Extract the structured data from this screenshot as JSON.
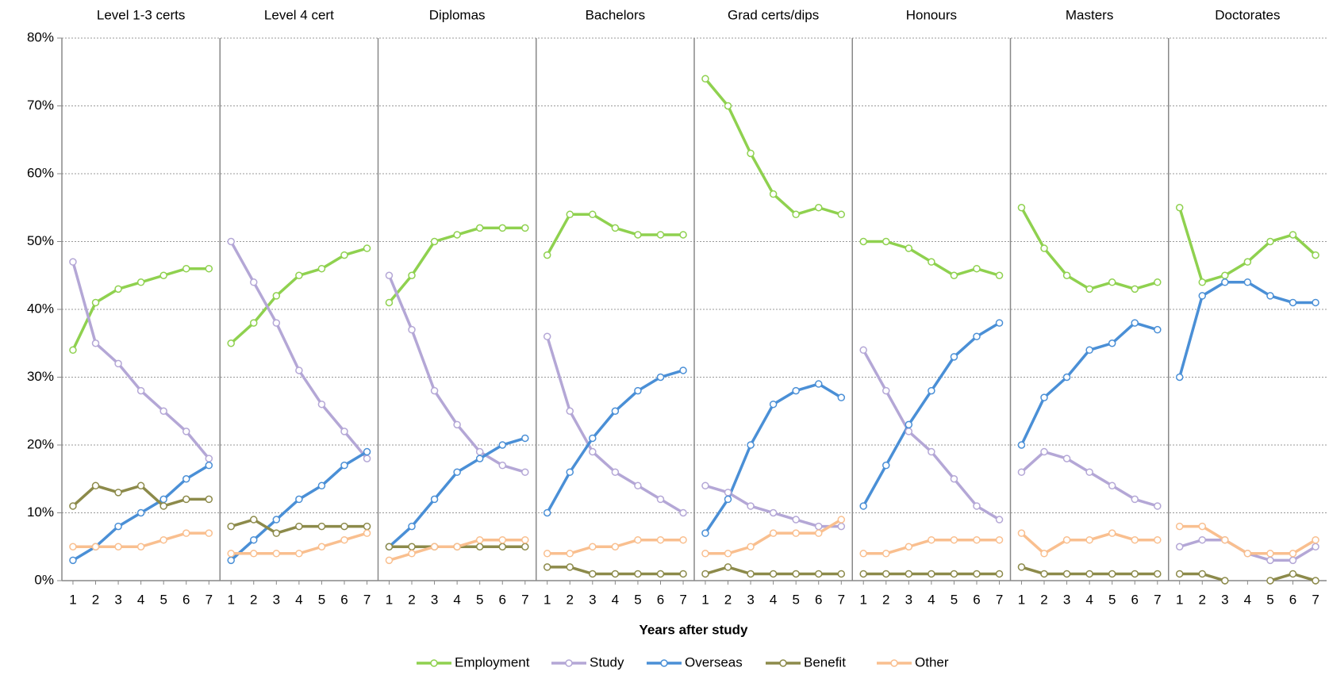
{
  "chart_data": {
    "type": "line",
    "xlabel": "Years after study",
    "panels": [
      "Level 1-3 certs",
      "Level 4 cert",
      "Diplomas",
      "Bachelors",
      "Grad certs/dips",
      "Honours",
      "Masters",
      "Doctorates"
    ],
    "x": [
      1,
      2,
      3,
      4,
      5,
      6,
      7
    ],
    "ylim": [
      0,
      80
    ],
    "yticks": [
      {
        "value": 0,
        "label": "0%"
      },
      {
        "value": 10,
        "label": "10%"
      },
      {
        "value": 20,
        "label": "20%"
      },
      {
        "value": 30,
        "label": "30%"
      },
      {
        "value": 40,
        "label": "40%"
      },
      {
        "value": 50,
        "label": "50%"
      },
      {
        "value": 60,
        "label": "60%"
      },
      {
        "value": 70,
        "label": "70%"
      },
      {
        "value": 80,
        "label": "80%"
      }
    ],
    "grid": true,
    "legend": "bottom",
    "series": [
      {
        "name": "Employment",
        "color": "#8fd14f",
        "values": [
          [
            34,
            41,
            43,
            44,
            45,
            46,
            46
          ],
          [
            35,
            38,
            42,
            45,
            46,
            48,
            49
          ],
          [
            41,
            45,
            50,
            51,
            52,
            52,
            52
          ],
          [
            48,
            54,
            54,
            52,
            51,
            51,
            51
          ],
          [
            74,
            70,
            63,
            57,
            54,
            55,
            54
          ],
          [
            50,
            50,
            49,
            47,
            45,
            46,
            45
          ],
          [
            55,
            49,
            45,
            43,
            44,
            43,
            44
          ],
          [
            55,
            44,
            45,
            47,
            50,
            51,
            48
          ]
        ]
      },
      {
        "name": "Study",
        "color": "#b4a7d6",
        "values": [
          [
            47,
            35,
            32,
            28,
            25,
            22,
            18
          ],
          [
            50,
            44,
            38,
            31,
            26,
            22,
            18
          ],
          [
            45,
            37,
            28,
            23,
            19,
            17,
            16
          ],
          [
            36,
            25,
            19,
            16,
            14,
            12,
            10
          ],
          [
            14,
            13,
            11,
            10,
            9,
            8,
            8
          ],
          [
            34,
            28,
            22,
            19,
            15,
            11,
            9
          ],
          [
            16,
            19,
            18,
            16,
            14,
            12,
            11
          ],
          [
            5,
            6,
            6,
            4,
            3,
            3,
            5
          ]
        ]
      },
      {
        "name": "Overseas",
        "color": "#4a8fd6",
        "values": [
          [
            3,
            5,
            8,
            10,
            12,
            15,
            17
          ],
          [
            3,
            6,
            9,
            12,
            14,
            17,
            19
          ],
          [
            5,
            8,
            12,
            16,
            18,
            20,
            21
          ],
          [
            10,
            16,
            21,
            25,
            28,
            30,
            31
          ],
          [
            7,
            12,
            20,
            26,
            28,
            29,
            27
          ],
          [
            11,
            17,
            23,
            28,
            33,
            36,
            38
          ],
          [
            20,
            27,
            30,
            34,
            35,
            38,
            37
          ],
          [
            30,
            42,
            44,
            44,
            42,
            41,
            41
          ]
        ]
      },
      {
        "name": "Benefit",
        "color": "#8c8a4a",
        "values": [
          [
            11,
            14,
            13,
            14,
            11,
            12,
            12
          ],
          [
            8,
            9,
            7,
            8,
            8,
            8,
            8
          ],
          [
            5,
            5,
            5,
            5,
            5,
            5,
            5
          ],
          [
            2,
            2,
            1,
            1,
            1,
            1,
            1
          ],
          [
            1,
            2,
            1,
            1,
            1,
            1,
            1
          ],
          [
            1,
            1,
            1,
            1,
            1,
            1,
            1
          ],
          [
            2,
            1,
            1,
            1,
            1,
            1,
            1
          ],
          [
            1,
            1,
            0,
            null,
            0,
            1,
            0
          ]
        ]
      },
      {
        "name": "Other",
        "color": "#f9bf8f",
        "values": [
          [
            5,
            5,
            5,
            5,
            6,
            7,
            7
          ],
          [
            4,
            4,
            4,
            4,
            5,
            6,
            7
          ],
          [
            3,
            4,
            5,
            5,
            6,
            6,
            6
          ],
          [
            4,
            4,
            5,
            5,
            6,
            6,
            6
          ],
          [
            4,
            4,
            5,
            7,
            7,
            7,
            9
          ],
          [
            4,
            4,
            5,
            6,
            6,
            6,
            6
          ],
          [
            7,
            4,
            6,
            6,
            7,
            6,
            6
          ],
          [
            8,
            8,
            6,
            4,
            4,
            4,
            6
          ]
        ]
      }
    ]
  }
}
